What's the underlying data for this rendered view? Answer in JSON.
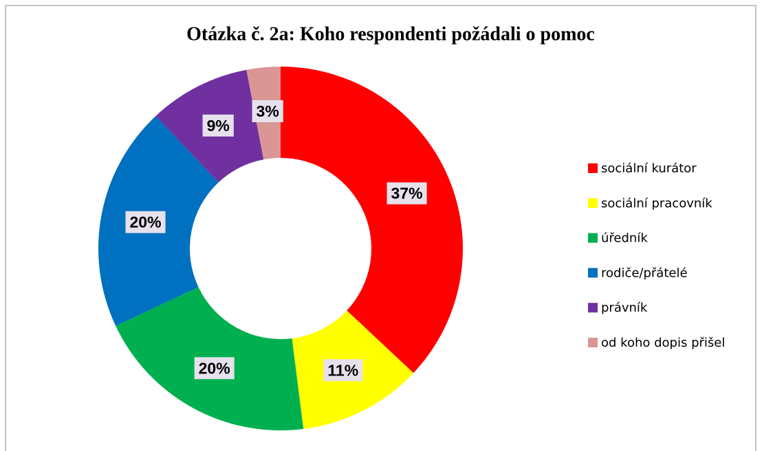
{
  "chart_data": {
    "type": "donut",
    "title": "Otázka č. 2a: Koho respondenti požádali o pomoc",
    "categories": [
      "sociální kurátor",
      "sociální pracovník",
      "úředník",
      "rodiče/přátelé",
      "právník",
      "od koho dopis přišel"
    ],
    "values": [
      37,
      11,
      20,
      20,
      9,
      3
    ],
    "value_labels": [
      "37%",
      "11%",
      "20%",
      "20%",
      "9%",
      "3%"
    ],
    "colors": [
      "#ff0000",
      "#ffff00",
      "#00b050",
      "#0070c0",
      "#7030a0",
      "#d99694"
    ],
    "legend": "right"
  }
}
